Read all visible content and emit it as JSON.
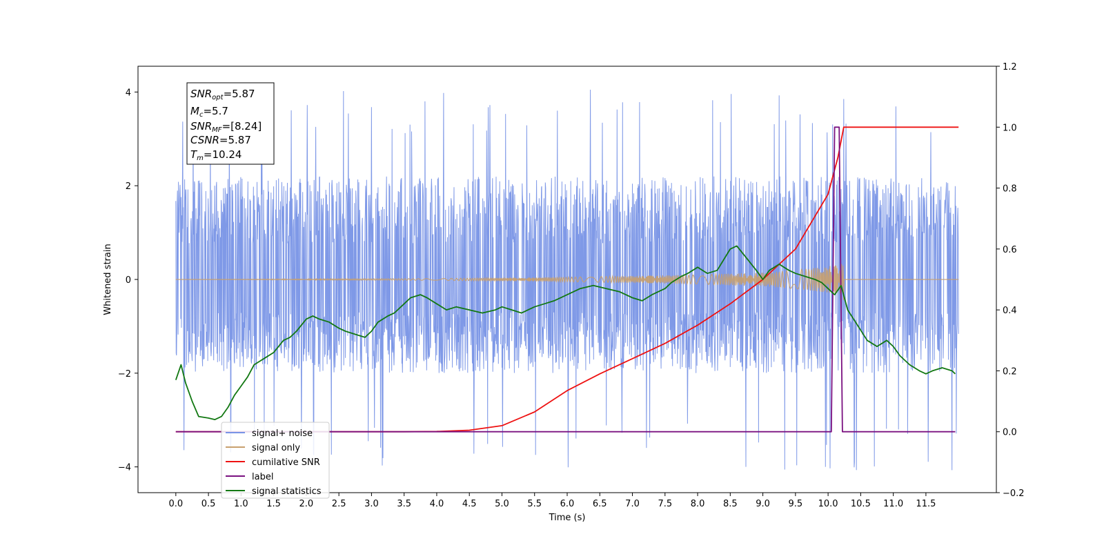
{
  "chart_data": {
    "type": "line",
    "xlabel": "Time (s)",
    "ylabel": "Whitened strain",
    "xlim": [
      -0.58,
      12.58
    ],
    "ylim": [
      -4.55,
      4.55
    ],
    "ylim_right": [
      -0.2,
      1.2
    ],
    "xticks": [
      "0.0",
      "0.5",
      "1.0",
      "1.5",
      "2.0",
      "2.5",
      "3.0",
      "3.5",
      "4.0",
      "4.5",
      "5.0",
      "5.5",
      "6.0",
      "6.5",
      "7.0",
      "7.5",
      "8.0",
      "8.5",
      "9.0",
      "9.5",
      "10.0",
      "10.5",
      "11.0",
      "11.5"
    ],
    "yticks_left": [
      "−4",
      "−2",
      "0",
      "2",
      "4"
    ],
    "yticks_right": [
      "−0.2",
      "0.0",
      "0.2",
      "0.4",
      "0.6",
      "0.8",
      "1.0",
      "1.2"
    ],
    "grid": false,
    "legend_position": "lower-left",
    "annotation": {
      "snr_opt": {
        "main": "SNR",
        "sub": "opt",
        "value": "=5.87"
      },
      "mc": {
        "main": "M",
        "sub": "c",
        "value": "=5.7"
      },
      "snr_mf": {
        "main": "SNR",
        "sub": "MF",
        "value": "=[8.24]"
      },
      "csnr": {
        "main": "CSNR",
        "value": "=5.87"
      },
      "tm": {
        "main": "T",
        "sub": "m",
        "value": "=10.24"
      }
    },
    "series": [
      {
        "name": "signal+ noise",
        "axis": "left",
        "color": "#7893e6",
        "envelope": {
          "typical_upper": 2.2,
          "typical_lower": -2.0,
          "max": 4.1,
          "min": -4.1,
          "t_start": 0.0,
          "t_end": 12.0
        }
      },
      {
        "name": "signal only",
        "axis": "left",
        "color": "#c8a06e",
        "chirp_amplitude": {
          "t": [
            0.0,
            4.0,
            6.0,
            8.0,
            9.0,
            9.5,
            10.0,
            10.2,
            10.24
          ],
          "amp": [
            0.0,
            0.02,
            0.05,
            0.1,
            0.15,
            0.2,
            0.28,
            0.4,
            0.45
          ]
        }
      },
      {
        "name": "cumilative SNR",
        "axis": "right",
        "color": "#ee1111",
        "x": [
          0.0,
          3.5,
          4.0,
          4.5,
          5.0,
          5.5,
          6.0,
          6.5,
          7.0,
          7.5,
          8.0,
          8.5,
          9.0,
          9.5,
          10.0,
          10.15,
          10.24,
          12.0
        ],
        "y": [
          0.0,
          0.0,
          0.001,
          0.005,
          0.02,
          0.065,
          0.135,
          0.19,
          0.24,
          0.29,
          0.35,
          0.42,
          0.5,
          0.6,
          0.78,
          0.9,
          1.0,
          1.0
        ]
      },
      {
        "name": "label",
        "axis": "right",
        "color": "#7a1080",
        "x": [
          0.0,
          10.05,
          10.1,
          10.17,
          10.22,
          11.95
        ],
        "y": [
          0.0,
          0.0,
          1.0,
          1.0,
          0.0,
          0.0
        ]
      },
      {
        "name": "signal statistics",
        "axis": "right",
        "color": "#127812",
        "x": [
          0.0,
          0.08,
          0.15,
          0.25,
          0.35,
          0.5,
          0.6,
          0.7,
          0.8,
          0.9,
          1.0,
          1.1,
          1.2,
          1.35,
          1.5,
          1.65,
          1.75,
          1.85,
          2.0,
          2.1,
          2.2,
          2.35,
          2.5,
          2.6,
          2.75,
          2.9,
          3.0,
          3.1,
          3.25,
          3.35,
          3.5,
          3.6,
          3.75,
          3.85,
          4.0,
          4.15,
          4.3,
          4.5,
          4.7,
          4.9,
          5.0,
          5.15,
          5.3,
          5.5,
          5.65,
          5.8,
          6.0,
          6.2,
          6.4,
          6.6,
          6.8,
          7.0,
          7.15,
          7.3,
          7.5,
          7.6,
          7.75,
          7.85,
          8.0,
          8.15,
          8.3,
          8.5,
          8.6,
          8.75,
          8.9,
          9.0,
          9.1,
          9.25,
          9.4,
          9.5,
          9.65,
          9.8,
          9.9,
          10.0,
          10.1,
          10.2,
          10.3,
          10.45,
          10.6,
          10.75,
          10.9,
          11.0,
          11.1,
          11.25,
          11.4,
          11.5,
          11.6,
          11.75,
          11.9,
          11.95
        ],
        "y": [
          0.17,
          0.22,
          0.16,
          0.1,
          0.05,
          0.045,
          0.04,
          0.05,
          0.08,
          0.12,
          0.15,
          0.18,
          0.22,
          0.24,
          0.26,
          0.3,
          0.31,
          0.33,
          0.37,
          0.38,
          0.37,
          0.36,
          0.34,
          0.33,
          0.32,
          0.31,
          0.33,
          0.36,
          0.38,
          0.39,
          0.42,
          0.44,
          0.45,
          0.44,
          0.42,
          0.4,
          0.41,
          0.4,
          0.39,
          0.4,
          0.41,
          0.4,
          0.39,
          0.41,
          0.42,
          0.43,
          0.45,
          0.47,
          0.48,
          0.47,
          0.46,
          0.44,
          0.43,
          0.45,
          0.47,
          0.49,
          0.51,
          0.52,
          0.54,
          0.52,
          0.53,
          0.6,
          0.61,
          0.57,
          0.53,
          0.5,
          0.53,
          0.55,
          0.53,
          0.52,
          0.51,
          0.5,
          0.49,
          0.47,
          0.45,
          0.48,
          0.4,
          0.35,
          0.3,
          0.28,
          0.3,
          0.28,
          0.25,
          0.22,
          0.2,
          0.19,
          0.2,
          0.21,
          0.2,
          0.19
        ]
      }
    ]
  }
}
